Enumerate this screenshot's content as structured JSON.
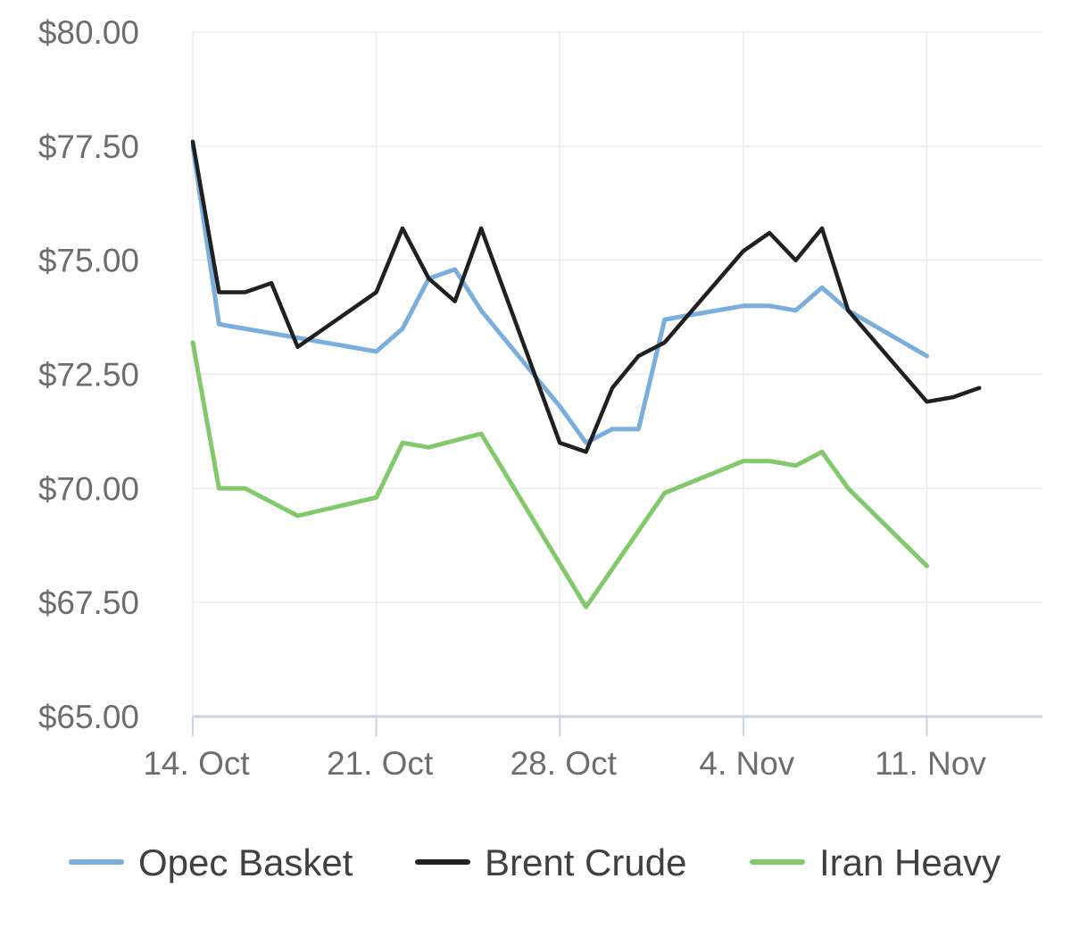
{
  "chart_data": {
    "type": "line",
    "title": "",
    "xlabel": "",
    "ylabel": "",
    "ylim": [
      65,
      80
    ],
    "yticks": [
      "$80.00",
      "$77.50",
      "$75.00",
      "$72.50",
      "$70.00",
      "$67.50",
      "$65.00"
    ],
    "ytick_values": [
      80,
      77.5,
      75,
      72.5,
      70,
      67.5,
      65
    ],
    "xlim": [
      "2019-10-14",
      "2019-11-14"
    ],
    "xticks": [
      "14. Oct",
      "21. Oct",
      "28. Oct",
      "4. Nov",
      "11. Nov"
    ],
    "xtick_dates": [
      "2019-10-14",
      "2019-10-21",
      "2019-10-28",
      "2019-11-04",
      "2019-11-11"
    ],
    "grid": true,
    "legend_position": "bottom",
    "series": [
      {
        "name": "Opec Basket",
        "color": "#7aaedc",
        "points": [
          [
            "2019-10-14",
            77.5
          ],
          [
            "2019-10-15",
            73.6
          ],
          [
            "2019-10-16",
            73.5
          ],
          [
            "2019-10-17",
            73.4
          ],
          [
            "2019-10-18",
            73.3
          ],
          [
            "2019-10-21",
            73.0
          ],
          [
            "2019-10-22",
            73.5
          ],
          [
            "2019-10-23",
            74.6
          ],
          [
            "2019-10-24",
            74.8
          ],
          [
            "2019-10-25",
            73.9
          ],
          [
            "2019-10-28",
            71.8
          ],
          [
            "2019-10-29",
            71.0
          ],
          [
            "2019-10-30",
            71.3
          ],
          [
            "2019-10-31",
            71.3
          ],
          [
            "2019-11-01",
            73.7
          ],
          [
            "2019-11-04",
            74.0
          ],
          [
            "2019-11-05",
            74.0
          ],
          [
            "2019-11-06",
            73.9
          ],
          [
            "2019-11-07",
            74.4
          ],
          [
            "2019-11-08",
            73.9
          ],
          [
            "2019-11-11",
            72.9
          ]
        ]
      },
      {
        "name": "Brent Crude",
        "color": "#202020",
        "points": [
          [
            "2019-10-14",
            77.6
          ],
          [
            "2019-10-15",
            74.3
          ],
          [
            "2019-10-16",
            74.3
          ],
          [
            "2019-10-17",
            74.5
          ],
          [
            "2019-10-18",
            73.1
          ],
          [
            "2019-10-21",
            74.3
          ],
          [
            "2019-10-22",
            75.7
          ],
          [
            "2019-10-23",
            74.6
          ],
          [
            "2019-10-24",
            74.1
          ],
          [
            "2019-10-25",
            75.7
          ],
          [
            "2019-10-28",
            71.0
          ],
          [
            "2019-10-29",
            70.8
          ],
          [
            "2019-10-30",
            72.2
          ],
          [
            "2019-10-31",
            72.9
          ],
          [
            "2019-11-01",
            73.2
          ],
          [
            "2019-11-04",
            75.2
          ],
          [
            "2019-11-05",
            75.6
          ],
          [
            "2019-11-06",
            75.0
          ],
          [
            "2019-11-07",
            75.7
          ],
          [
            "2019-11-08",
            73.9
          ],
          [
            "2019-11-11",
            71.9
          ],
          [
            "2019-11-12",
            72.0
          ],
          [
            "2019-11-13",
            72.2
          ]
        ]
      },
      {
        "name": "Iran Heavy",
        "color": "#82c96c",
        "points": [
          [
            "2019-10-14",
            73.2
          ],
          [
            "2019-10-15",
            70.0
          ],
          [
            "2019-10-16",
            70.0
          ],
          [
            "2019-10-18",
            69.4
          ],
          [
            "2019-10-21",
            69.8
          ],
          [
            "2019-10-22",
            71.0
          ],
          [
            "2019-10-23",
            70.9
          ],
          [
            "2019-10-25",
            71.2
          ],
          [
            "2019-10-29",
            67.4
          ],
          [
            "2019-11-01",
            69.9
          ],
          [
            "2019-11-04",
            70.6
          ],
          [
            "2019-11-05",
            70.6
          ],
          [
            "2019-11-06",
            70.5
          ],
          [
            "2019-11-07",
            70.8
          ],
          [
            "2019-11-08",
            70.0
          ],
          [
            "2019-11-11",
            68.3
          ]
        ]
      }
    ]
  }
}
